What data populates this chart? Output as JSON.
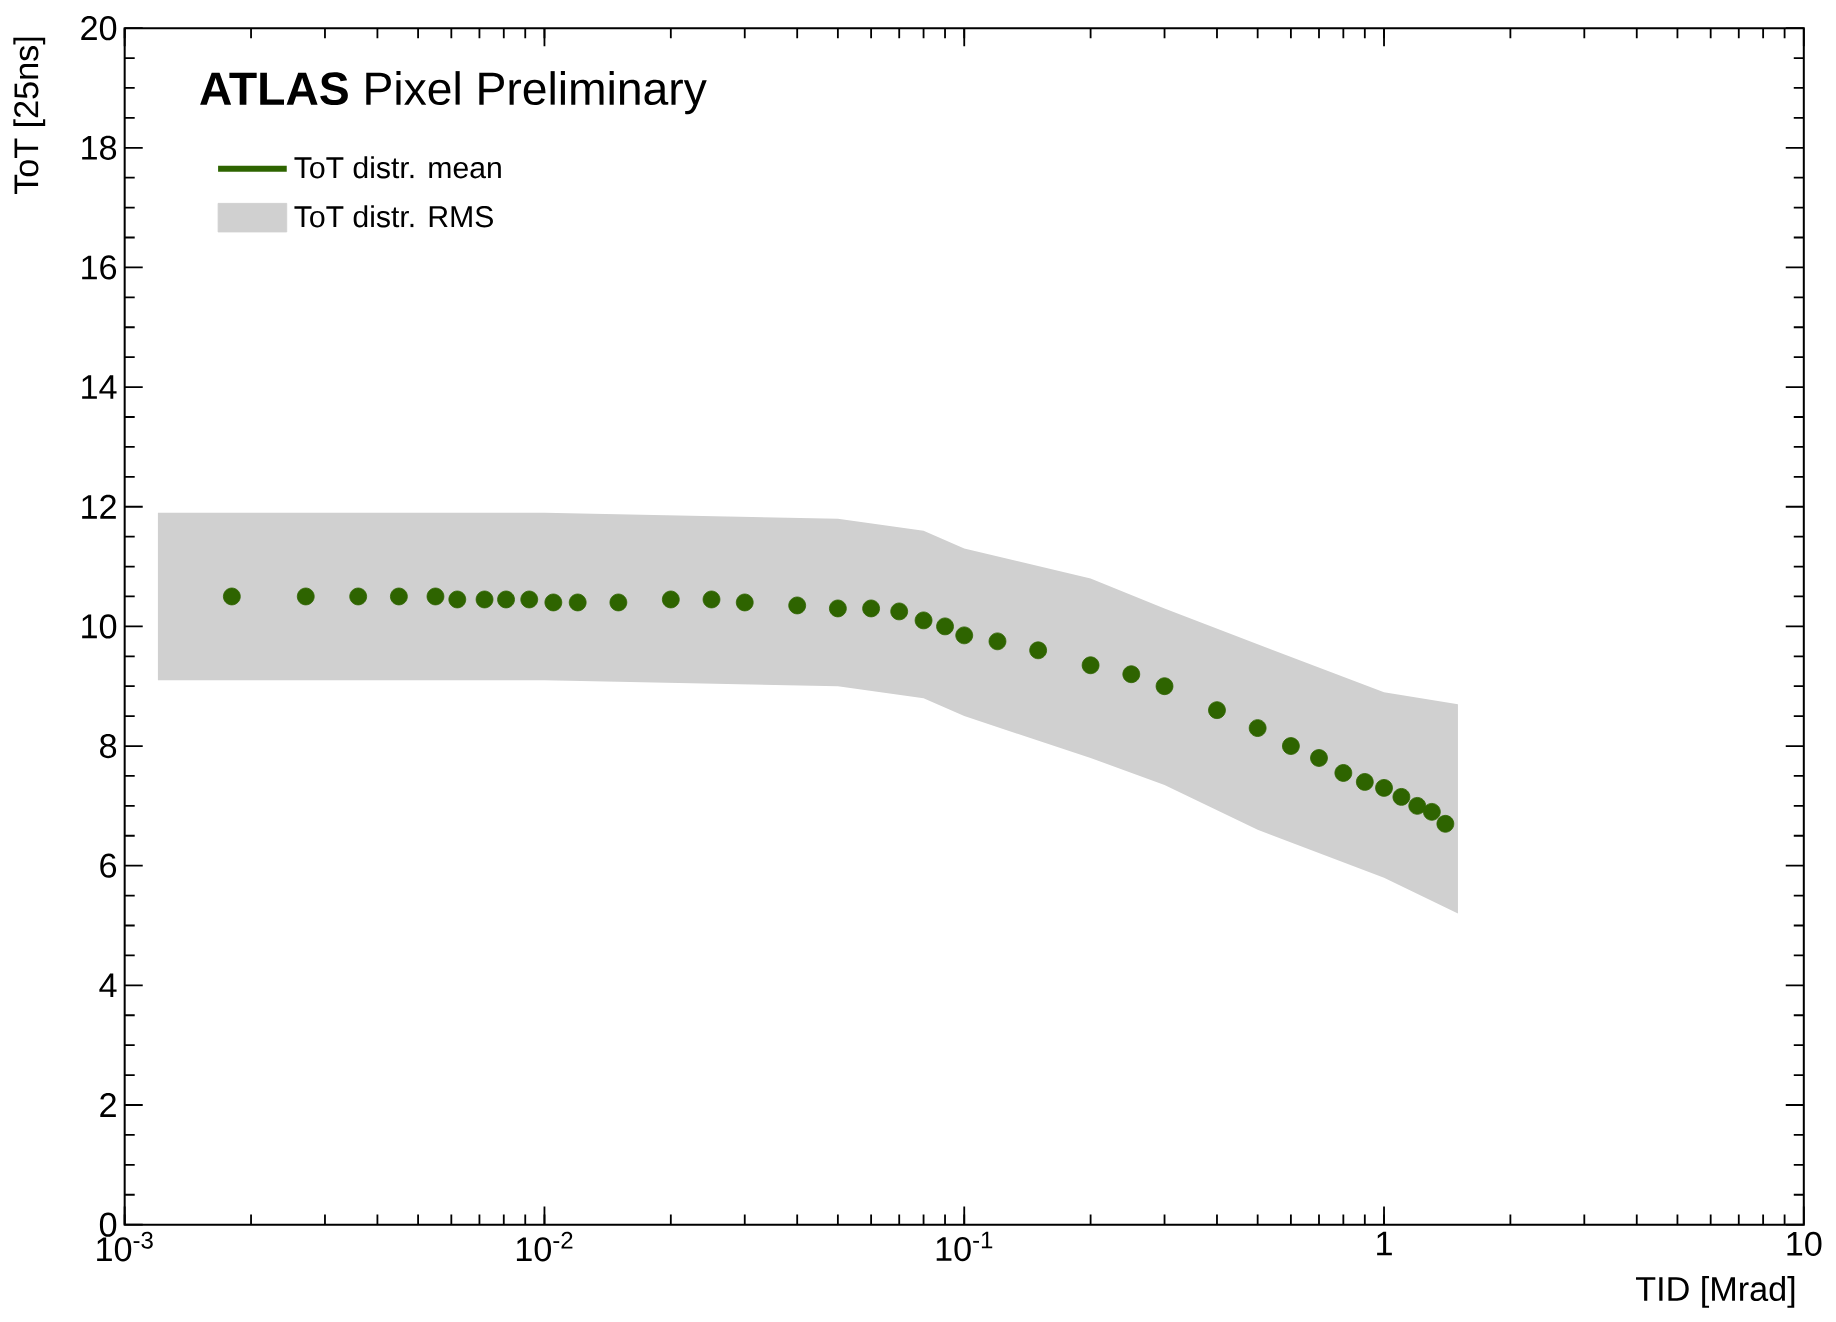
{
  "chart_data": {
    "type": "scatter",
    "title": "**ATLAS**  Pixel Preliminary",
    "xlabel": "TID [Mrad]",
    "ylabel": "ToT [25ns]",
    "log": "x",
    "xlim": [
      0.001,
      10
    ],
    "ylim": [
      0,
      20
    ],
    "xticks": [
      {
        "value": 0.001,
        "label": "10$^{-3}$"
      },
      {
        "value": 0.01,
        "label": "10$^{-2}$"
      },
      {
        "value": 0.1,
        "label": "10$^{-1}$"
      },
      1,
      10
    ],
    "yticks": [
      0,
      2,
      4,
      6,
      8,
      10,
      12,
      14,
      16,
      18,
      20
    ],
    "legend": "top left",
    "series": [
      {
        "name": "ToT distr. mean",
        "color": "#2e6400",
        "x": [
          0.0018,
          0.0027,
          0.0036,
          0.0045,
          0.0055,
          0.0062,
          0.0072,
          0.0081,
          0.0092,
          0.0105,
          0.012,
          0.015,
          0.02,
          0.025,
          0.03,
          0.04,
          0.05,
          0.06,
          0.07,
          0.08,
          0.09,
          0.1,
          0.12,
          0.15,
          0.2,
          0.25,
          0.3,
          0.4,
          0.5,
          0.6,
          0.7,
          0.8,
          0.9,
          1.0,
          1.1,
          1.2,
          1.3,
          1.4
        ],
        "values": [
          10.5,
          10.5,
          10.5,
          10.5,
          10.5,
          10.45,
          10.45,
          10.45,
          10.45,
          10.4,
          10.4,
          10.4,
          10.45,
          10.45,
          10.4,
          10.35,
          10.3,
          10.3,
          10.25,
          10.1,
          10.0,
          9.85,
          9.75,
          9.6,
          9.35,
          9.2,
          9.0,
          8.6,
          8.3,
          8.0,
          7.8,
          7.55,
          7.4,
          7.3,
          7.15,
          7.0,
          6.9,
          6.7
        ]
      },
      {
        "name": "ToT distr. RMS",
        "type": "area",
        "color": "#d0d0d0",
        "x": [
          0.0012,
          0.01,
          0.05,
          0.08,
          0.1,
          0.2,
          0.3,
          0.5,
          1.0,
          1.5
        ],
        "values": [
          null,
          null,
          null,
          null,
          null,
          null,
          null,
          null,
          null,
          null
        ],
        "upper": [
          11.9,
          11.9,
          11.8,
          11.6,
          11.3,
          10.8,
          10.3,
          9.7,
          8.9,
          8.7
        ],
        "lower": [
          9.1,
          9.1,
          9.0,
          8.8,
          8.5,
          7.8,
          7.35,
          6.6,
          5.8,
          5.2
        ]
      }
    ]
  }
}
